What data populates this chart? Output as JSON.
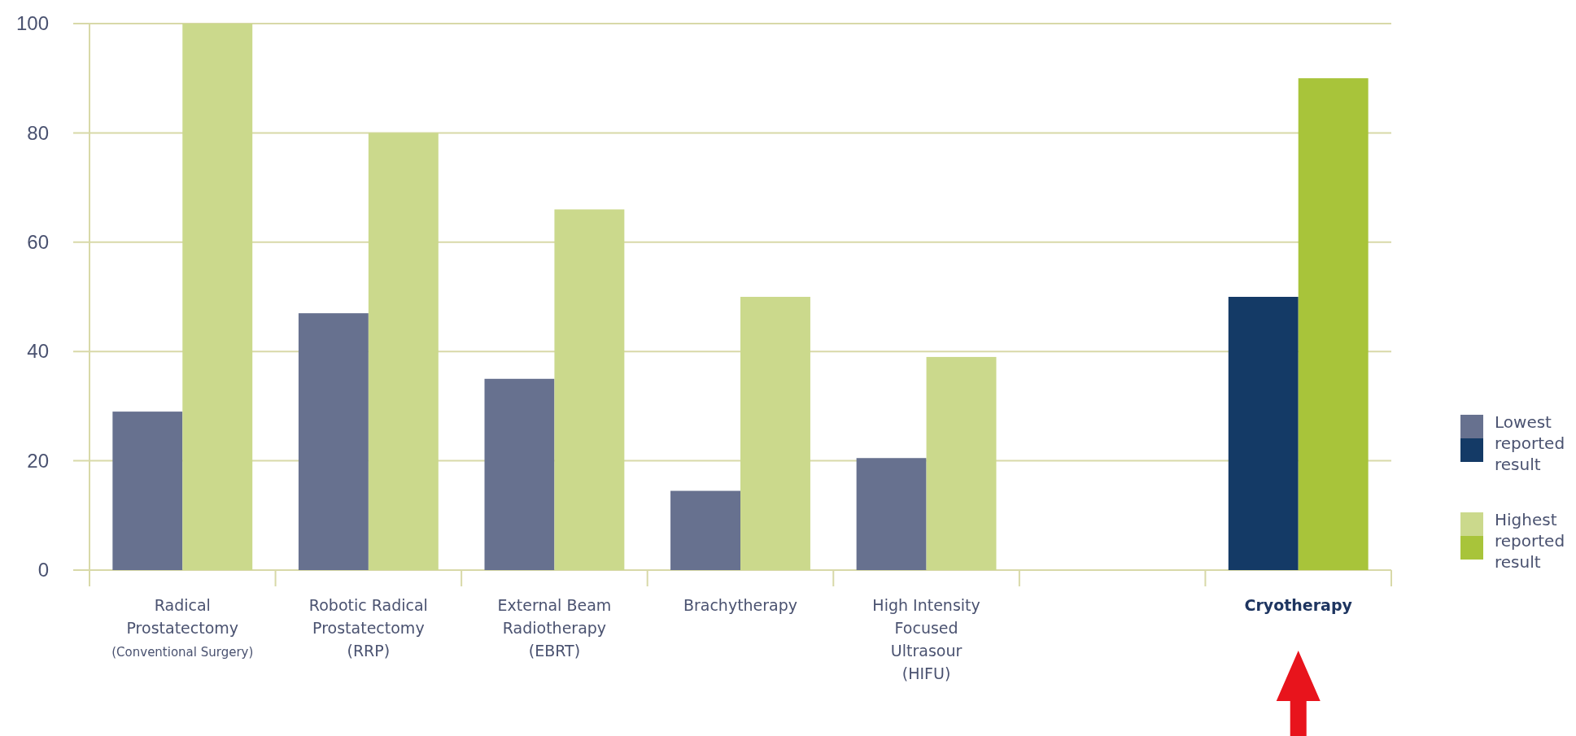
{
  "chart_data": {
    "type": "bar",
    "categories": [
      "Radical\nProstatectomy\n(Conventional Surgery)",
      "Robotic Radical\nProstatectomy\n(RRP)",
      "External Beam\nRadiotherapy\n(EBRT)",
      "Brachytherapy",
      "High Intensity\nFocused\nUltrasour\n(HIFU)",
      null,
      "Cryotherapy"
    ],
    "series": [
      {
        "name": "Lowest\nreported\nresult",
        "colors": [
          "#67718f",
          "#67718f",
          "#67718f",
          "#67718f",
          "#67718f",
          null,
          "#143a66"
        ],
        "values": [
          29,
          47,
          35,
          14.5,
          20.5,
          null,
          50
        ]
      },
      {
        "name": "Highest\nreported\nresult",
        "colors": [
          "#cbd98c",
          "#cbd98c",
          "#cbd98c",
          "#cbd98c",
          "#cbd98c",
          null,
          "#a8c43a"
        ],
        "values": [
          100,
          80,
          66,
          50,
          39,
          null,
          90
        ]
      }
    ],
    "ylim": [
      0,
      100
    ],
    "yticks": [
      0,
      20,
      40,
      60,
      80,
      100
    ],
    "grid": "y",
    "legend": "right"
  }
}
